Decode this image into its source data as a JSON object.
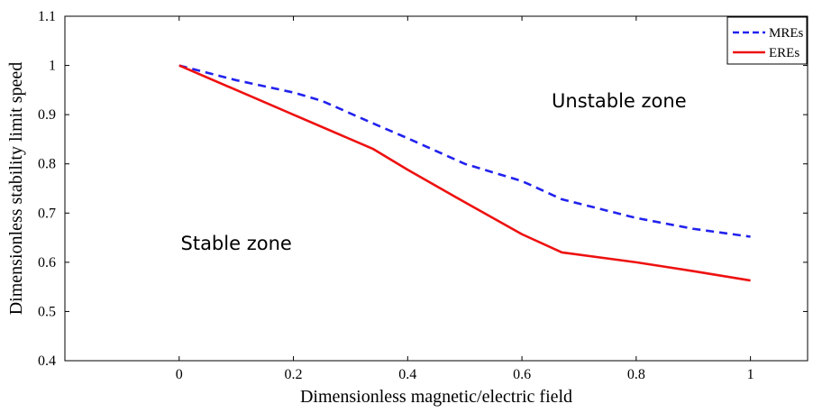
{
  "chart_data": {
    "type": "line",
    "xlabel": "Dimensionless magnetic/electric field",
    "ylabel": "Dimensionless stability limit speed",
    "xlim": [
      -0.2,
      1.1
    ],
    "ylim": [
      0.4,
      1.1
    ],
    "x_ticks": [
      "0",
      "0.2",
      "0.4",
      "0.6",
      "0.8",
      "1"
    ],
    "y_ticks": [
      "0.4",
      "0.5",
      "0.6",
      "0.7",
      "0.8",
      "0.9",
      "1",
      "1.1"
    ],
    "grid": false,
    "legend_position": "top-right",
    "series": [
      {
        "name": "MREs",
        "color": "#2222ee",
        "style": "dashed",
        "x": [
          0,
          0.1,
          0.2,
          0.25,
          0.33,
          0.4,
          0.5,
          0.6,
          0.67,
          0.8,
          0.9,
          1.0
        ],
        "y": [
          1.0,
          0.97,
          0.945,
          0.928,
          0.887,
          0.852,
          0.8,
          0.765,
          0.728,
          0.69,
          0.668,
          0.652
        ]
      },
      {
        "name": "EREs",
        "color": "#ee1111",
        "style": "solid",
        "x": [
          0,
          0.1,
          0.2,
          0.34,
          0.4,
          0.5,
          0.6,
          0.67,
          0.8,
          0.9,
          1.0
        ],
        "y": [
          1.0,
          0.95,
          0.9,
          0.83,
          0.788,
          0.722,
          0.657,
          0.62,
          0.6,
          0.582,
          0.563
        ]
      }
    ],
    "annotations": [
      {
        "text": "Unstable zone",
        "x": 0.77,
        "y": 0.915
      },
      {
        "text": "Stable zone",
        "x": 0.1,
        "y": 0.625
      }
    ]
  }
}
